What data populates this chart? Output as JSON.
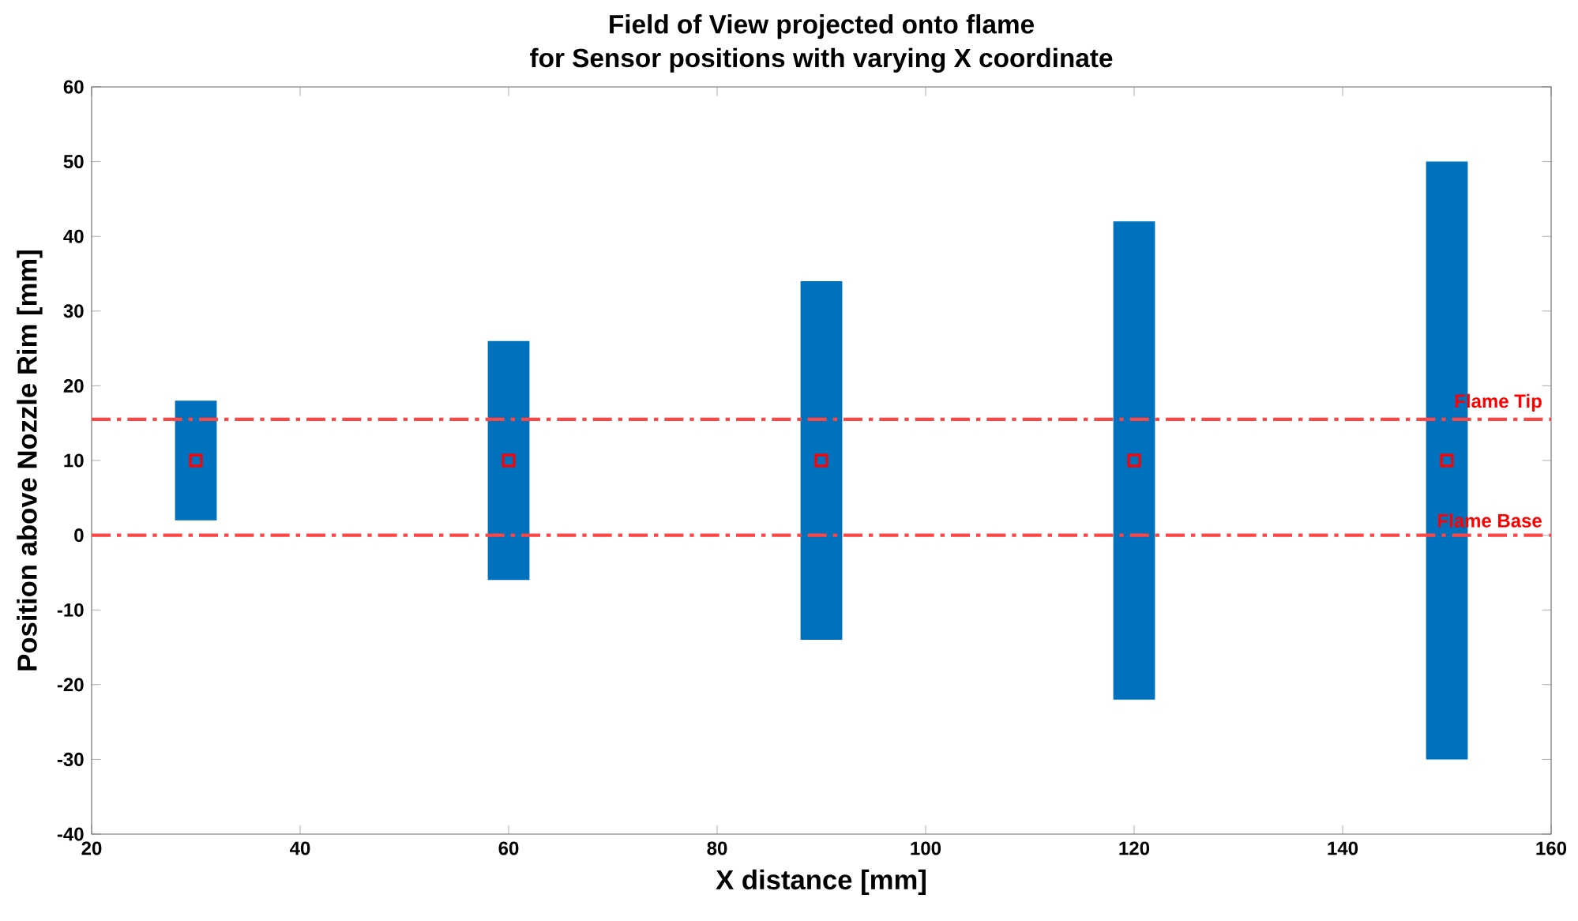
{
  "chart_data": {
    "type": "bar",
    "title": "Field of View projected onto flame",
    "subtitle": "for Sensor positions with varying X coordinate",
    "xlabel": "X distance [mm]",
    "ylabel": "Position above Nozzle Rim [mm]",
    "x": [
      30,
      60,
      90,
      120,
      150
    ],
    "series": [
      {
        "color": "#0072bd",
        "base": [
          2,
          -6,
          -14,
          -22,
          -30
        ],
        "values": [
          16,
          32,
          48,
          64,
          80
        ]
      },
      {
        "type": "scatter",
        "color": "#ff0000",
        "marker": "square",
        "values": [
          10,
          10,
          10,
          10,
          10
        ]
      }
    ],
    "xlim": [
      20,
      160
    ],
    "ylim": [
      -40,
      60
    ],
    "xticks": [
      20,
      40,
      60,
      80,
      100,
      120,
      140,
      160
    ],
    "yticks": [
      -40,
      -30,
      -20,
      -10,
      0,
      10,
      20,
      30,
      40,
      50,
      60
    ],
    "ref_lines": [
      {
        "axis": "y",
        "value": 15.5,
        "label": "Flame Tip",
        "color": "#ff4444",
        "line_style": "dashed"
      },
      {
        "axis": "y",
        "value": 0,
        "label": "Flame Base",
        "color": "#ff4444",
        "line_style": "dashed"
      }
    ],
    "grid": false
  }
}
